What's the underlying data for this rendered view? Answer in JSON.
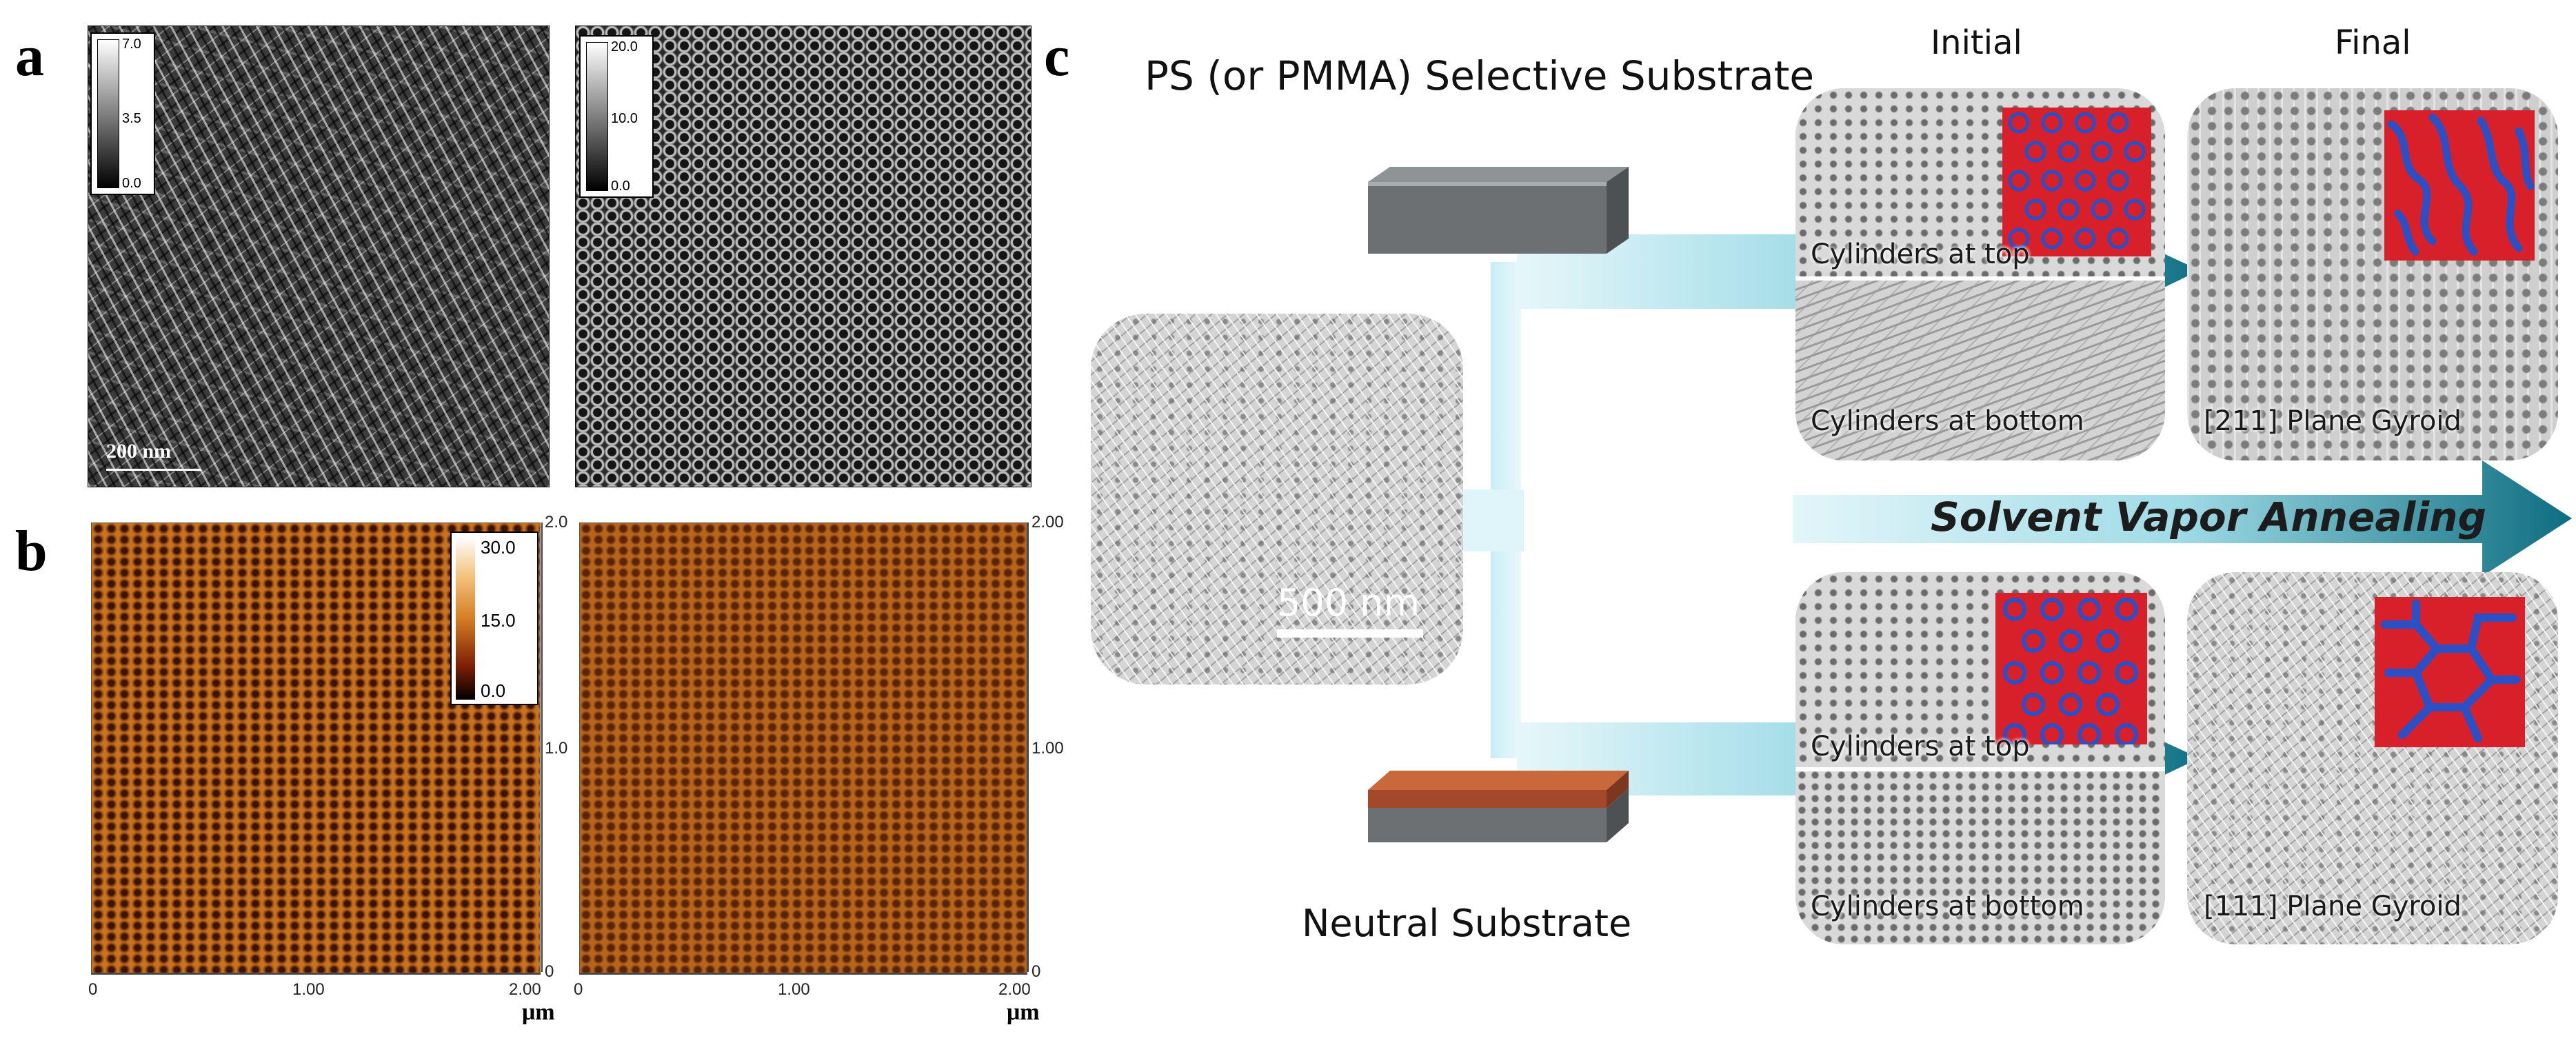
{
  "figure": {
    "panel_labels": {
      "a": "a",
      "b": "b",
      "c": "c"
    },
    "panel_a": {
      "left_colorbar": {
        "ticks": [
          "7.0",
          "3.5",
          "0.0"
        ]
      },
      "right_colorbar": {
        "ticks": [
          "20.0",
          "10.0",
          "0.0"
        ]
      },
      "scale_bar": "200 nm"
    },
    "panel_b": {
      "colorbar": {
        "ticks": [
          "30.0",
          "15.0",
          "0.0"
        ]
      },
      "left_image": {
        "x_ticks": [
          "0",
          "1.00",
          "2.00"
        ],
        "right_axis_ticks": [
          "2.0",
          "1.0",
          "0"
        ],
        "unit": "μm"
      },
      "right_image": {
        "x_ticks": [
          "0",
          "1.00",
          "2.00"
        ],
        "right_axis_ticks": [
          "2.00",
          "1.00",
          "0"
        ],
        "unit": "μm"
      },
      "colors": {
        "afm_light": "#d98b34",
        "afm_dark": "#3b1406"
      }
    },
    "panel_c": {
      "top_substrate_label": "PS (or PMMA) Selective Substrate",
      "bottom_substrate_label": "Neutral Substrate",
      "column_initial": "Initial",
      "column_final": "Final",
      "scale_bar": "500 nm",
      "process_label": "Solvent Vapor Annealing",
      "top_row": {
        "initial_top": "Cylinders at top",
        "initial_bottom": "Cylinders at bottom",
        "final": "[211] Plane Gyroid"
      },
      "bottom_row": {
        "initial_top": "Cylinders at top",
        "initial_bottom": "Cylinders at bottom",
        "final": "[111] Plane Gyroid"
      },
      "colors": {
        "arrow_light": "#d8f3f8",
        "arrow_dark": "#0f7386",
        "substrate_gray": "#6c7072",
        "neutral_orange": "#b5532a",
        "domain_red": "#d8202a",
        "domain_blue": "#2b4fc4"
      }
    }
  }
}
